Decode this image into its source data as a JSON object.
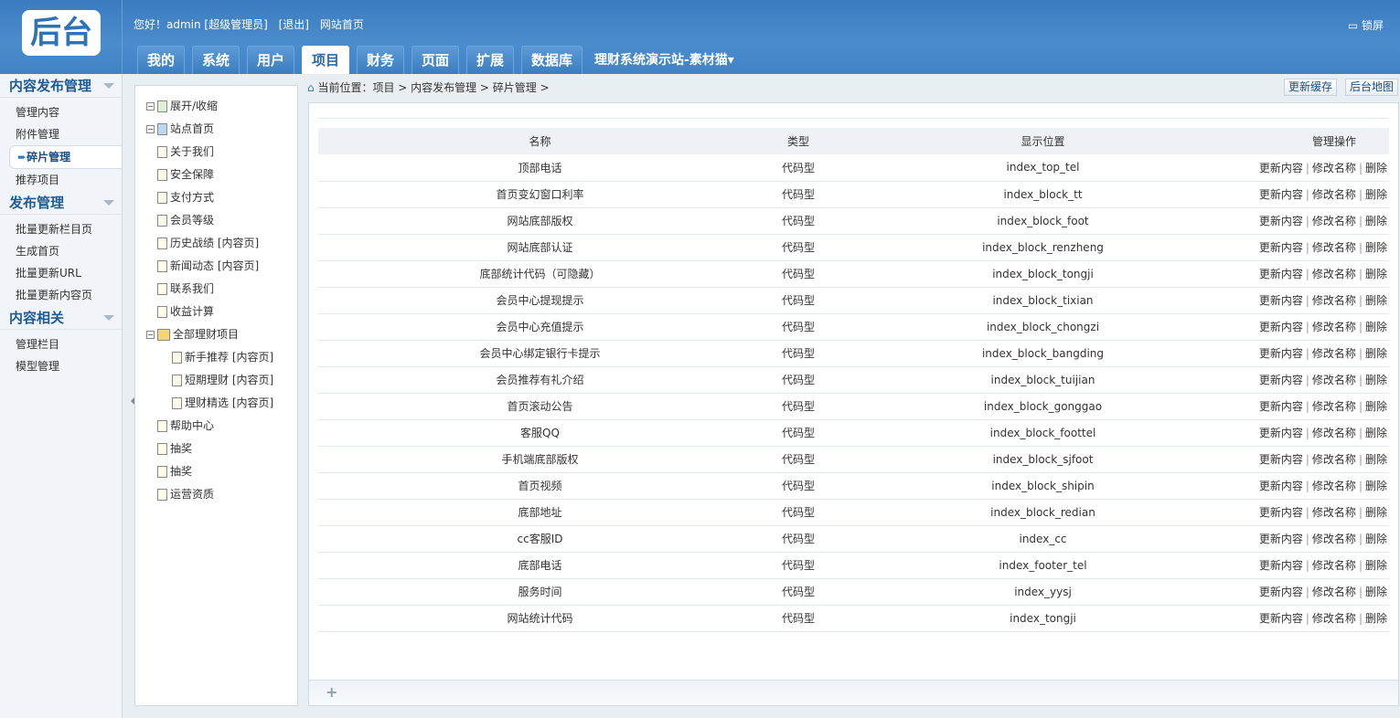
{
  "header": {
    "logo": "后台",
    "greeting": "您好！admin [超级管理员]",
    "logout": "[退出]",
    "site_home": "网站首页",
    "lock": "锁屏",
    "tabs": [
      "我的",
      "系统",
      "用户",
      "项目",
      "财务",
      "页面",
      "扩展",
      "数据库"
    ],
    "active_tab": "项目",
    "site_selector": "理财系统演示站-素材猫▾"
  },
  "sidebar": {
    "sections": [
      {
        "title": "内容发布管理",
        "items": [
          "管理内容",
          "附件管理",
          "碎片管理",
          "推荐项目"
        ]
      },
      {
        "title": "发布管理",
        "items": [
          "批量更新栏目页",
          "生成首页",
          "批量更新URL",
          "批量更新内容页"
        ]
      },
      {
        "title": "内容相关",
        "items": [
          "管理栏目",
          "模型管理"
        ]
      }
    ],
    "active_item": "碎片管理"
  },
  "tree": {
    "toggle": "展开/收缩",
    "nodes": [
      "站点首页",
      "关于我们",
      "安全保障",
      "支付方式",
      "会员等级",
      "历史战绩 [内容页]",
      "新闻动态 [内容页]",
      "联系我们",
      "收益计算",
      "全部理财项目",
      "新手推荐 [内容页]",
      "短期理财 [内容页]",
      "理财精选 [内容页]",
      "帮助中心",
      "抽奖",
      "抽奖",
      "运营资质"
    ]
  },
  "breadcrumb": "当前位置：项目 > 内容发布管理 > 碎片管理 >",
  "toolbar": {
    "refresh_cache": "更新缓存",
    "site_map": "后台地图"
  },
  "table": {
    "headers": [
      "名称",
      "类型",
      "显示位置",
      "管理操作"
    ],
    "ops": [
      "更新内容",
      "修改名称",
      "删除"
    ],
    "rows": [
      [
        "顶部电话",
        "代码型",
        "index_top_tel"
      ],
      [
        "首页变幻窗口利率",
        "代码型",
        "index_block_tt"
      ],
      [
        "网站底部版权",
        "代码型",
        "index_block_foot"
      ],
      [
        "网站底部认证",
        "代码型",
        "index_block_renzheng"
      ],
      [
        "底部统计代码（可隐藏）",
        "代码型",
        "index_block_tongji"
      ],
      [
        "会员中心提现提示",
        "代码型",
        "index_block_tixian"
      ],
      [
        "会员中心充值提示",
        "代码型",
        "index_block_chongzi"
      ],
      [
        "会员中心绑定银行卡提示",
        "代码型",
        "index_block_bangding"
      ],
      [
        "会员推荐有礼介绍",
        "代码型",
        "index_block_tuijian"
      ],
      [
        "首页滚动公告",
        "代码型",
        "index_block_gonggao"
      ],
      [
        "客服QQ",
        "代码型",
        "index_block_foottel"
      ],
      [
        "手机端底部版权",
        "代码型",
        "index_block_sjfoot"
      ],
      [
        "首页视频",
        "代码型",
        "index_block_shipin"
      ],
      [
        "底部地址",
        "代码型",
        "index_block_redian"
      ],
      [
        "cc客服ID",
        "代码型",
        "index_cc"
      ],
      [
        "底部电话",
        "代码型",
        "index_footer_tel"
      ],
      [
        "服务时间",
        "代码型",
        "index_yysj"
      ],
      [
        "网站统计代码",
        "代码型",
        "index_tongji"
      ]
    ]
  },
  "footer": {
    "add": "+"
  }
}
